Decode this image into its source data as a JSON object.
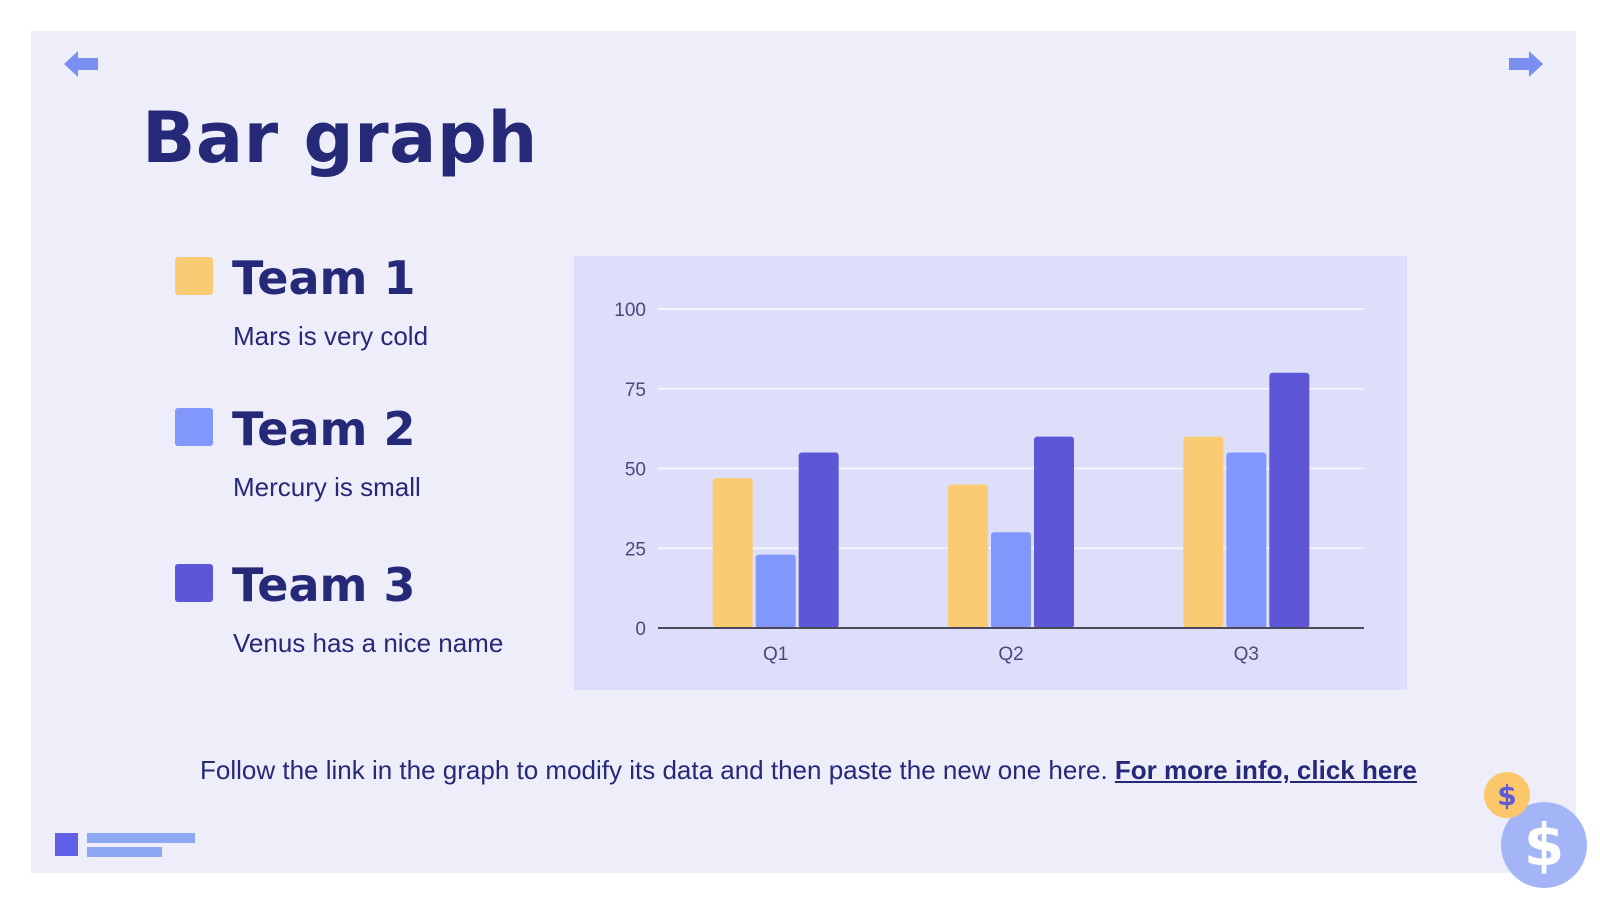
{
  "slide": {
    "title": "Bar graph",
    "footer_text": "Follow the link in the graph to modify its data and then paste the new one here.",
    "footer_link": "For more info, click here",
    "coin_big_symbol": "$",
    "coin_small_symbol": "$"
  },
  "icons": {
    "prev": "arrow-left-icon",
    "next": "arrow-right-icon",
    "coin": "dollar-coin-icon"
  },
  "colors": {
    "background": "#eeeefb",
    "title": "#262878",
    "team1": "#fbcb74",
    "team2": "#8197fb",
    "team3": "#5d57d7",
    "arrow": "#7b8ff0",
    "chart_bg": "#dddefa"
  },
  "legend": [
    {
      "name": "Team 1",
      "desc": "Mars is very cold",
      "color": "#fbcb74"
    },
    {
      "name": "Team 2",
      "desc": "Mercury is small",
      "color": "#8197fb"
    },
    {
      "name": "Team 3",
      "desc": "Venus has a nice name",
      "color": "#5d57d7"
    }
  ],
  "chart_data": {
    "type": "bar",
    "categories": [
      "Q1",
      "Q2",
      "Q3"
    ],
    "series": [
      {
        "name": "Team 1",
        "color": "#fbcb74",
        "values": [
          47,
          45,
          60
        ]
      },
      {
        "name": "Team 2",
        "color": "#8197fb",
        "values": [
          23,
          30,
          55
        ]
      },
      {
        "name": "Team 3",
        "color": "#5d57d7",
        "values": [
          55,
          60,
          80
        ]
      }
    ],
    "yticks": [
      0,
      25,
      50,
      75,
      100
    ],
    "ylim": [
      0,
      100
    ],
    "grid": true,
    "legend": "left (outside chart)"
  }
}
